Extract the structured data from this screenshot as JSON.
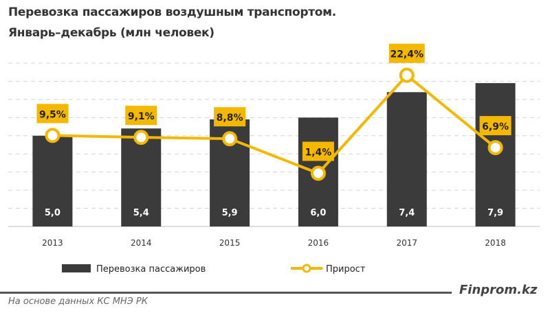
{
  "chart_data": {
    "type": "bar+line",
    "title": "Перевозка пассажиров воздушным транспортом.",
    "subtitle": "Январь–декабрь (млн человек)",
    "categories": [
      "2013",
      "2014",
      "2015",
      "2016",
      "2017",
      "2018"
    ],
    "series": [
      {
        "name": "Перевозка пассажиров",
        "type": "bar",
        "values": [
          5.0,
          5.4,
          5.9,
          6.0,
          7.4,
          7.9
        ],
        "labels": [
          "5,0",
          "5,4",
          "5,9",
          "6,0",
          "7,4",
          "7,9"
        ],
        "color": "#3b3b3b"
      },
      {
        "name": "Прирост",
        "type": "line",
        "values": [
          9.5,
          9.1,
          8.8,
          1.4,
          22.4,
          6.9
        ],
        "labels": [
          "9,5%",
          "9,1%",
          "8,8%",
          "1,4%",
          "22,4%",
          "6,9%"
        ],
        "color": "#f5b800",
        "axis": "secondary"
      }
    ],
    "ylim": [
      0,
      9
    ],
    "y2lim": [
      -10,
      25
    ],
    "grid": true,
    "legend": "bottom"
  },
  "footer": {
    "source": "На основе данных КС МНЭ РК",
    "brand": "Finprom.kz"
  }
}
